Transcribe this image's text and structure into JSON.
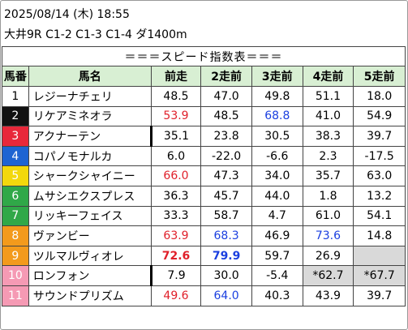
{
  "header": {
    "datetime": "2025/08/14 (木) 18:55",
    "race": "大井9R C1-2 C1-3 C1-4 ダ1400m"
  },
  "table": {
    "title": "＝＝＝スピード指数表＝＝＝",
    "columns": [
      "馬番",
      "馬名",
      "前走",
      "2走前",
      "3走前",
      "4走前",
      "5走前"
    ],
    "rows": [
      [
        "1",
        "レジーナチェリ",
        "48.5",
        "47.0",
        "49.8",
        "51.1",
        "18.0"
      ],
      [
        "2",
        "リケアミネオラ",
        "53.9",
        "48.5",
        "68.8",
        "41.0",
        "54.9"
      ],
      [
        "3",
        "アクナーテン",
        "35.1",
        "23.8",
        "30.5",
        "38.3",
        "39.7"
      ],
      [
        "4",
        "コパノモナルカ",
        "6.0",
        "-22.0",
        "-6.6",
        "2.3",
        "-17.5"
      ],
      [
        "5",
        "シャークシャイニー",
        "66.0",
        "47.3",
        "34.0",
        "35.7",
        "63.0"
      ],
      [
        "6",
        "ムサシエクスプレス",
        "36.3",
        "45.7",
        "44.0",
        "1.8",
        "13.2"
      ],
      [
        "7",
        "リッキーフェイス",
        "33.3",
        "58.7",
        "4.7",
        "61.0",
        "54.1"
      ],
      [
        "8",
        "ヴァンビー",
        "63.9",
        "68.3",
        "46.9",
        "73.6",
        "14.8"
      ],
      [
        "9",
        "ツルマルヴィオレ",
        "72.6",
        "79.9",
        "59.7",
        "26.9",
        null
      ],
      [
        "10",
        "ロンフォン",
        "7.9",
        "30.0",
        "-5.4",
        "*62.7",
        "*67.7"
      ],
      [
        "11",
        "サウンドプリズム",
        "49.6",
        "64.0",
        "40.3",
        "43.9",
        "39.7"
      ]
    ]
  }
}
